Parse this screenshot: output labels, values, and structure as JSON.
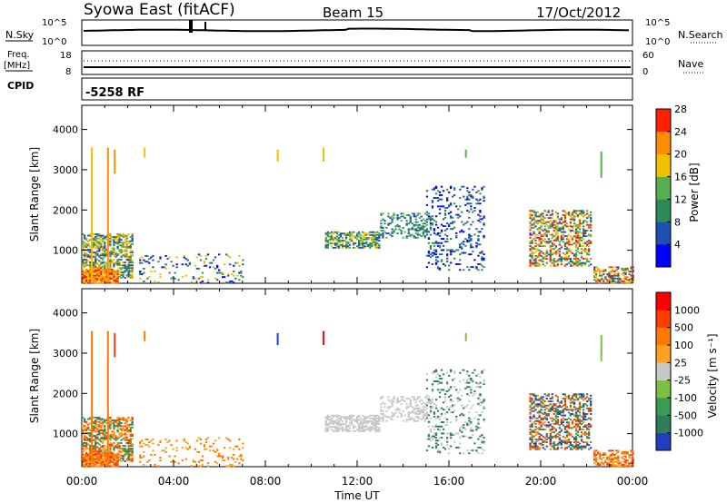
{
  "header": {
    "title": "Syowa East (fitACF)",
    "beam": "Beam 15",
    "date": "17/Oct/2012"
  },
  "status_panels": {
    "nsky_label": "N.Sky",
    "nsky_ticks": [
      "10^5",
      "10^0"
    ],
    "nsearch_label": "N.Search",
    "nsearch_ticks": [
      "10^5",
      "10^0"
    ],
    "freq_label_line1": "Freq.",
    "freq_label_line2": "[MHz]",
    "freq_ticks": [
      "18",
      "8"
    ],
    "nave_label": "Nave",
    "nave_ticks": [
      "60",
      "0"
    ],
    "cpid_label": "CPID",
    "cpid_value": "-5258 RF"
  },
  "chart_data": [
    {
      "type": "heatmap",
      "name": "power-panel",
      "ylabel": "Slant Range [km]",
      "xlabel": "Time UT",
      "ylim": [
        180,
        4600
      ],
      "xlim_hours": [
        0,
        24
      ],
      "yticks": [
        "1000",
        "2000",
        "3000",
        "4000"
      ],
      "xticks": [
        "00:00",
        "04:00",
        "08:00",
        "12:00",
        "16:00",
        "20:00",
        "00:00"
      ],
      "colorbar": {
        "label": "Power [dB]",
        "ticks": [
          "4",
          "8",
          "12",
          "16",
          "20",
          "24",
          "28"
        ],
        "colors": [
          "#0000ff",
          "#1e50b4",
          "#2e8b57",
          "#56b050",
          "#f0c000",
          "#ff8c00",
          "#ff2000"
        ]
      },
      "echo_regions": [
        {
          "t0": 0.0,
          "t1": 2.2,
          "r0": 300,
          "r1": 1400,
          "density": 0.55,
          "levels": [
            1,
            2,
            3,
            4,
            5
          ]
        },
        {
          "t0": 0.0,
          "t1": 1.6,
          "r0": 180,
          "r1": 500,
          "density": 0.8,
          "levels": [
            4,
            5,
            6
          ]
        },
        {
          "t0": 2.5,
          "t1": 7.0,
          "r0": 180,
          "r1": 900,
          "density": 0.12,
          "levels": [
            0,
            1,
            2,
            4
          ]
        },
        {
          "t0": 10.6,
          "t1": 13.0,
          "r0": 1050,
          "r1": 1450,
          "density": 0.6,
          "levels": [
            1,
            2,
            3,
            4
          ]
        },
        {
          "t0": 13.0,
          "t1": 15.2,
          "r0": 1300,
          "r1": 1900,
          "density": 0.3,
          "levels": [
            1,
            2,
            3
          ]
        },
        {
          "t0": 15.0,
          "t1": 17.5,
          "r0": 500,
          "r1": 2600,
          "density": 0.18,
          "levels": [
            0,
            1,
            2
          ]
        },
        {
          "t0": 19.5,
          "t1": 22.2,
          "r0": 600,
          "r1": 2000,
          "density": 0.45,
          "levels": [
            1,
            2,
            3,
            4,
            5,
            6
          ]
        },
        {
          "t0": 22.3,
          "t1": 24.0,
          "r0": 180,
          "r1": 600,
          "density": 0.5,
          "levels": [
            1,
            2,
            4,
            5,
            6
          ]
        }
      ],
      "vertical_streaks": [
        {
          "t": 0.4,
          "r0": 300,
          "r1": 3550,
          "level": 4
        },
        {
          "t": 1.1,
          "r0": 200,
          "r1": 3550,
          "level": 5
        },
        {
          "t": 1.4,
          "r0": 2900,
          "r1": 3500,
          "level": 5
        },
        {
          "t": 2.7,
          "r0": 3300,
          "r1": 3550,
          "level": 4
        },
        {
          "t": 8.5,
          "r0": 3200,
          "r1": 3500,
          "level": 4
        },
        {
          "t": 10.5,
          "r0": 3200,
          "r1": 3550,
          "level": 4
        },
        {
          "t": 16.7,
          "r0": 3300,
          "r1": 3500,
          "level": 3
        },
        {
          "t": 22.6,
          "r0": 2800,
          "r1": 3450,
          "level": 3
        }
      ]
    },
    {
      "type": "heatmap",
      "name": "velocity-panel",
      "ylabel": "Slant Range [km]",
      "xlabel": "Time UT",
      "ylim": [
        180,
        4600
      ],
      "xlim_hours": [
        0,
        24
      ],
      "yticks": [
        "1000",
        "2000",
        "3000",
        "4000"
      ],
      "xticks": [
        "00:00",
        "04:00",
        "08:00",
        "12:00",
        "16:00",
        "20:00",
        "00:00"
      ],
      "colorbar": {
        "label": "Velocity [m s⁻¹]",
        "ticks": [
          "1000",
          "500",
          "100",
          "25",
          "-25",
          "-100",
          "-500",
          "-1000"
        ],
        "colors": [
          "#1f3fbf",
          "#2e7d5b",
          "#3b9a54",
          "#7cc040",
          "#c8c8c8",
          "#ffa020",
          "#ff7800",
          "#ff3c00",
          "#ff0000"
        ]
      },
      "echo_regions": [
        {
          "t0": 0.0,
          "t1": 2.2,
          "r0": 300,
          "r1": 1400,
          "density": 0.55,
          "levels": [
            1,
            2,
            5,
            6,
            7
          ]
        },
        {
          "t0": 0.0,
          "t1": 1.6,
          "r0": 180,
          "r1": 500,
          "density": 0.8,
          "levels": [
            5,
            6,
            7
          ]
        },
        {
          "t0": 2.5,
          "t1": 7.0,
          "r0": 180,
          "r1": 900,
          "density": 0.12,
          "levels": [
            5,
            6
          ]
        },
        {
          "t0": 10.6,
          "t1": 13.0,
          "r0": 1050,
          "r1": 1450,
          "density": 0.6,
          "levels": [
            4
          ]
        },
        {
          "t0": 13.0,
          "t1": 15.2,
          "r0": 1300,
          "r1": 1900,
          "density": 0.3,
          "levels": [
            4
          ]
        },
        {
          "t0": 15.0,
          "t1": 17.5,
          "r0": 500,
          "r1": 2600,
          "density": 0.18,
          "levels": [
            1,
            4
          ]
        },
        {
          "t0": 19.5,
          "t1": 22.2,
          "r0": 600,
          "r1": 2000,
          "density": 0.45,
          "levels": [
            0,
            1,
            2,
            6,
            7
          ]
        },
        {
          "t0": 22.3,
          "t1": 24.0,
          "r0": 180,
          "r1": 600,
          "density": 0.5,
          "levels": [
            5,
            6,
            7
          ]
        }
      ],
      "vertical_streaks": [
        {
          "t": 0.4,
          "r0": 300,
          "r1": 3550,
          "level": 6
        },
        {
          "t": 1.1,
          "r0": 200,
          "r1": 3550,
          "level": 6
        },
        {
          "t": 1.4,
          "r0": 2900,
          "r1": 3500,
          "level": 7
        },
        {
          "t": 2.7,
          "r0": 3300,
          "r1": 3550,
          "level": 6
        },
        {
          "t": 8.5,
          "r0": 3200,
          "r1": 3500,
          "level": 0
        },
        {
          "t": 10.5,
          "r0": 3200,
          "r1": 3550,
          "level": 8
        },
        {
          "t": 16.7,
          "r0": 3300,
          "r1": 3500,
          "level": 3
        },
        {
          "t": 22.6,
          "r0": 2800,
          "r1": 3450,
          "level": 3
        }
      ]
    }
  ]
}
